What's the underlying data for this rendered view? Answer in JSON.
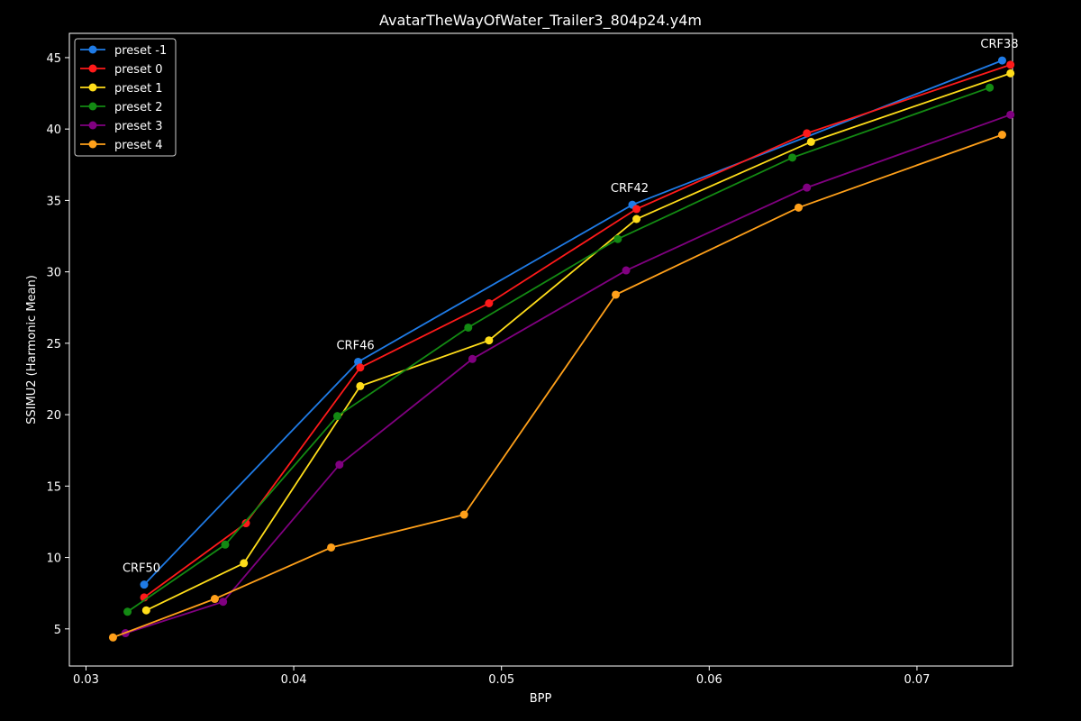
{
  "chart_data": {
    "type": "line",
    "title": "AvatarTheWayOfWater_Trailer3_804p24.y4m",
    "xlabel": "BPP",
    "ylabel": "SSIMU2 (Harmonic Mean)",
    "xlim": [
      0.0292,
      0.0746
    ],
    "ylim": [
      2.4,
      46.7
    ],
    "xticks": [
      "0.03",
      "0.04",
      "0.05",
      "0.06",
      "0.07"
    ],
    "yticks": [
      "5",
      "10",
      "15",
      "20",
      "25",
      "30",
      "35",
      "40",
      "45"
    ],
    "grid": false,
    "legend_position": "top-left",
    "series": [
      {
        "name": "preset -1",
        "color": "#1f7be6",
        "points": [
          [
            0.0328,
            8.1
          ],
          [
            0.0431,
            23.7
          ],
          [
            0.0563,
            34.7
          ],
          [
            0.0741,
            44.8
          ]
        ]
      },
      {
        "name": "preset 0",
        "color": "#ff1a1a",
        "points": [
          [
            0.0328,
            7.2
          ],
          [
            0.0377,
            12.4
          ],
          [
            0.0432,
            23.3
          ],
          [
            0.0494,
            27.8
          ],
          [
            0.0565,
            34.4
          ],
          [
            0.0647,
            39.7
          ],
          [
            0.0745,
            44.5
          ]
        ]
      },
      {
        "name": "preset 1",
        "color": "#ffdd1a",
        "points": [
          [
            0.0329,
            6.3
          ],
          [
            0.0376,
            9.6
          ],
          [
            0.0432,
            22.0
          ],
          [
            0.0494,
            25.2
          ],
          [
            0.0565,
            33.7
          ],
          [
            0.0649,
            39.1
          ],
          [
            0.0745,
            43.9
          ]
        ]
      },
      {
        "name": "preset 2",
        "color": "#138a13",
        "points": [
          [
            0.032,
            6.2
          ],
          [
            0.0367,
            10.9
          ],
          [
            0.0421,
            19.9
          ],
          [
            0.0484,
            26.1
          ],
          [
            0.0556,
            32.3
          ],
          [
            0.064,
            38.0
          ],
          [
            0.0735,
            42.9
          ]
        ]
      },
      {
        "name": "preset 3",
        "color": "#800080",
        "points": [
          [
            0.0319,
            4.7
          ],
          [
            0.0366,
            6.9
          ],
          [
            0.0422,
            16.5
          ],
          [
            0.0486,
            23.9
          ],
          [
            0.056,
            30.1
          ],
          [
            0.0647,
            35.9
          ],
          [
            0.0745,
            41.0
          ]
        ]
      },
      {
        "name": "preset 4",
        "color": "#ffa01a",
        "points": [
          [
            0.0313,
            4.4
          ],
          [
            0.0362,
            7.1
          ],
          [
            0.0418,
            10.7
          ],
          [
            0.0482,
            13.0
          ],
          [
            0.0555,
            28.4
          ],
          [
            0.0643,
            34.5
          ],
          [
            0.0741,
            39.6
          ]
        ]
      }
    ],
    "annotations": [
      {
        "text": "CRF50",
        "x": 0.0328,
        "y": 8.1
      },
      {
        "text": "CRF46",
        "x": 0.0431,
        "y": 23.7
      },
      {
        "text": "CRF42",
        "x": 0.0563,
        "y": 34.7
      },
      {
        "text": "CRF38",
        "x": 0.0741,
        "y": 44.8
      }
    ]
  }
}
